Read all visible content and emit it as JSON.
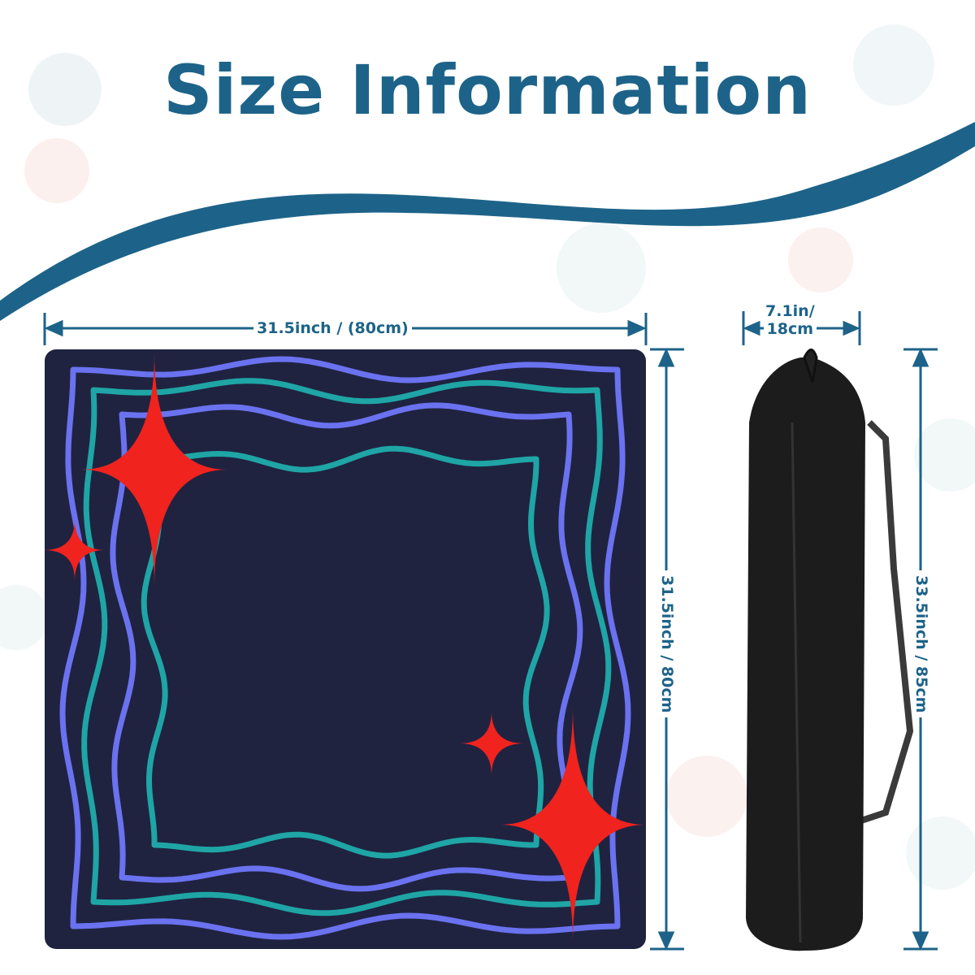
{
  "title": "Size Information",
  "colors": {
    "text": "#1d6389",
    "mat": "#1f2340",
    "wave_blue": "#6b72f0",
    "wave_teal": "#1fa5a5",
    "star": "#f0231e",
    "bag": "#1c1c1c"
  },
  "mat": {
    "width_label": "31.5inch / (80cm)",
    "height_label": "31.5inch / 80cm"
  },
  "bag": {
    "width_label_line1": "7.1in/",
    "width_label_line2": "18cm",
    "height_label": "33.5inch / 85cm"
  }
}
